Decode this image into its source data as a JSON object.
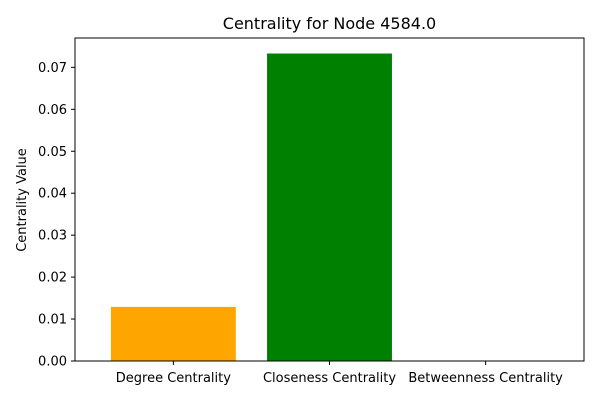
{
  "chart_data": {
    "type": "bar",
    "title": "Centrality for Node 4584.0",
    "xlabel": "",
    "ylabel": "Centrality Value",
    "categories": [
      "Degree Centrality",
      "Closeness Centrality",
      "Betweenness Centrality"
    ],
    "values": [
      0.0129,
      0.0733,
      0.0
    ],
    "colors": [
      "#ffa500",
      "#008000",
      "#ff0000"
    ],
    "ylim": [
      0,
      0.077
    ],
    "yticks": [
      0.0,
      0.01,
      0.02,
      0.03,
      0.04,
      0.05,
      0.06,
      0.07
    ],
    "ytick_labels": [
      "0.00",
      "0.01",
      "0.02",
      "0.03",
      "0.04",
      "0.05",
      "0.06",
      "0.07"
    ],
    "grid": false,
    "legend": "none"
  }
}
